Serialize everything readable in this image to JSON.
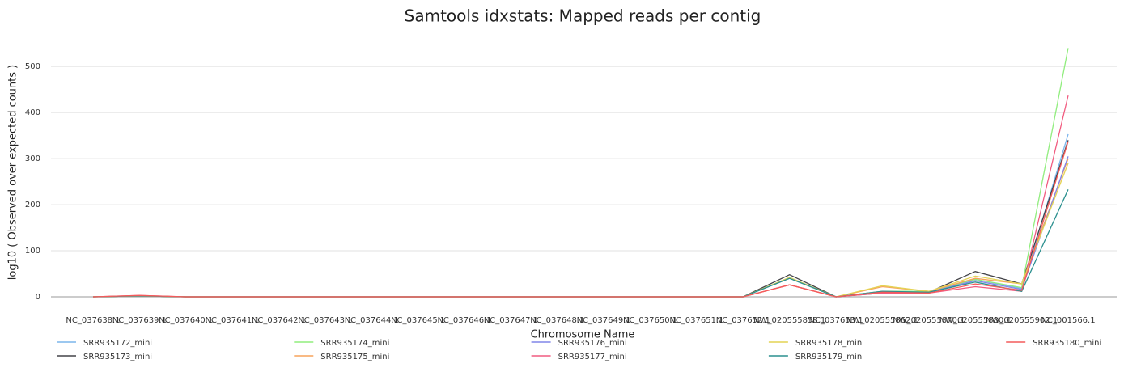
{
  "chart_data": {
    "type": "line",
    "title": "Samtools idxstats: Mapped reads per contig",
    "x_label": "Chromosome Name",
    "y_label": "log10 ( Observed over expected counts )",
    "categories": [
      "NC_037638.1",
      "NC_037639.1",
      "NC_037640.1",
      "NC_037641.1",
      "NC_037642.1",
      "NC_037643.1",
      "NC_037644.1",
      "NC_037645.1",
      "NC_037646.1",
      "NC_037647.1",
      "NC_037648.1",
      "NC_037649.1",
      "NC_037650.1",
      "NC_037651.1",
      "NC_037652.1",
      "NW_020555858.1",
      "NC_037653.1",
      "NW_020555862.1",
      "NW_020555870.1",
      "NW_020555880.1",
      "NW_020555902.1",
      "NC_001566.1"
    ],
    "ylim": [
      0,
      560
    ],
    "yticks": [
      0,
      100,
      200,
      300,
      400,
      500
    ],
    "grid": true,
    "series": [
      {
        "name": "SRR935172_mini",
        "color": "#7cb5ec",
        "values": [
          0,
          2,
          0,
          0,
          0,
          0,
          0,
          0,
          0,
          0,
          0,
          0,
          0,
          0,
          0,
          42,
          0,
          12,
          10,
          38,
          18,
          353
        ]
      },
      {
        "name": "SRR935173_mini",
        "color": "#434348",
        "values": [
          0,
          2,
          0,
          0,
          0,
          0,
          0,
          0,
          0,
          0,
          0,
          0,
          0,
          0,
          0,
          48,
          0,
          8,
          10,
          55,
          28,
          340
        ]
      },
      {
        "name": "SRR935174_mini",
        "color": "#90ed7d",
        "values": [
          0,
          2,
          0,
          0,
          0,
          0,
          0,
          0,
          0,
          0,
          0,
          0,
          0,
          0,
          0,
          40,
          0,
          12,
          12,
          38,
          20,
          540
        ]
      },
      {
        "name": "SRR935175_mini",
        "color": "#f7a35c",
        "values": [
          0,
          2,
          0,
          0,
          0,
          0,
          0,
          0,
          0,
          0,
          0,
          0,
          0,
          0,
          0,
          26,
          0,
          22,
          12,
          40,
          28,
          300
        ]
      },
      {
        "name": "SRR935176_mini",
        "color": "#8085e9",
        "values": [
          0,
          2,
          0,
          0,
          0,
          0,
          0,
          0,
          0,
          0,
          0,
          0,
          0,
          0,
          0,
          40,
          0,
          10,
          10,
          35,
          16,
          305
        ]
      },
      {
        "name": "SRR935177_mini",
        "color": "#f15c80",
        "values": [
          0,
          3,
          0,
          0,
          0,
          0,
          0,
          0,
          0,
          0,
          0,
          0,
          0,
          0,
          0,
          26,
          0,
          8,
          8,
          22,
          12,
          437
        ]
      },
      {
        "name": "SRR935178_mini",
        "color": "#e4d354",
        "values": [
          0,
          2,
          0,
          0,
          0,
          0,
          0,
          0,
          0,
          0,
          0,
          0,
          0,
          0,
          0,
          42,
          0,
          24,
          12,
          45,
          28,
          290
        ]
      },
      {
        "name": "SRR935179_mini",
        "color": "#2b908f",
        "values": [
          0,
          2,
          0,
          0,
          0,
          0,
          0,
          0,
          0,
          0,
          0,
          0,
          0,
          0,
          0,
          40,
          0,
          12,
          10,
          32,
          12,
          233
        ]
      },
      {
        "name": "SRR935180_mini",
        "color": "#f45b5b",
        "values": [
          0,
          3,
          0,
          0,
          0,
          0,
          0,
          0,
          0,
          0,
          0,
          0,
          0,
          0,
          0,
          26,
          0,
          10,
          8,
          28,
          14,
          337
        ]
      }
    ]
  }
}
